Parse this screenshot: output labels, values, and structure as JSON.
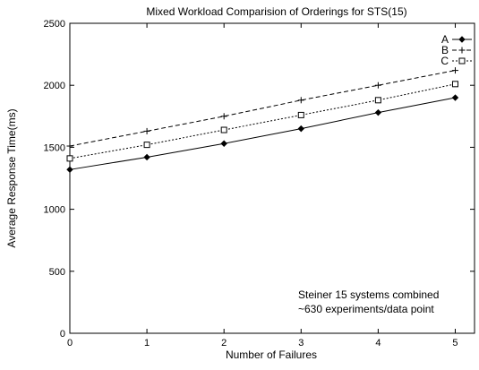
{
  "chart_data": {
    "type": "line",
    "title": "Mixed Workload Comparision of Orderings for STS(15)",
    "xlabel": "Number of Failures",
    "ylabel": "Average Response Time(ms)",
    "xlim": [
      0,
      5.25
    ],
    "ylim": [
      0,
      2500
    ],
    "x_ticks": [
      0,
      1,
      2,
      3,
      4,
      5
    ],
    "y_ticks": [
      0,
      500,
      1000,
      1500,
      2000,
      2500
    ],
    "grid": false,
    "legend_position": "top-right",
    "x": [
      0,
      1,
      2,
      3,
      4,
      5
    ],
    "series": [
      {
        "name": "A",
        "values": [
          1320,
          1420,
          1530,
          1650,
          1780,
          1900
        ],
        "marker": "diamond",
        "line_style": "solid",
        "color": "#000000"
      },
      {
        "name": "B",
        "values": [
          1510,
          1630,
          1750,
          1880,
          2000,
          2120
        ],
        "marker": "plus",
        "line_style": "dashed",
        "color": "#000000"
      },
      {
        "name": "C",
        "values": [
          1410,
          1520,
          1640,
          1760,
          1880,
          2010
        ],
        "marker": "square",
        "line_style": "dotted",
        "color": "#000000"
      }
    ],
    "annotations": [
      "Steiner 15 systems combined",
      "~630 experiments/data point"
    ]
  }
}
